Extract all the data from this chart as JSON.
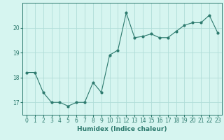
{
  "x": [
    0,
    1,
    2,
    3,
    4,
    5,
    6,
    7,
    8,
    9,
    10,
    11,
    12,
    13,
    14,
    15,
    16,
    17,
    18,
    19,
    20,
    21,
    22,
    23
  ],
  "y": [
    18.2,
    18.2,
    17.4,
    17.0,
    17.0,
    16.85,
    17.0,
    17.0,
    17.8,
    17.4,
    18.9,
    19.1,
    20.6,
    19.6,
    19.65,
    19.75,
    19.6,
    19.6,
    19.85,
    20.1,
    20.2,
    20.2,
    20.5,
    19.8
  ],
  "line_color": "#2d7a6e",
  "marker": "o",
  "marker_size": 2,
  "bg_color": "#d6f5f0",
  "grid_color": "#b0ddd8",
  "xlabel": "Humidex (Indice chaleur)",
  "ylim": [
    16.5,
    21.0
  ],
  "xlim": [
    -0.5,
    23.5
  ],
  "yticks": [
    17,
    18,
    19,
    20
  ],
  "xticks": [
    0,
    1,
    2,
    3,
    4,
    5,
    6,
    7,
    8,
    9,
    10,
    11,
    12,
    13,
    14,
    15,
    16,
    17,
    18,
    19,
    20,
    21,
    22,
    23
  ],
  "axis_color": "#2d7a6e",
  "tick_color": "#2d7a6e",
  "label_fontsize": 6.5,
  "tick_fontsize": 5.5
}
